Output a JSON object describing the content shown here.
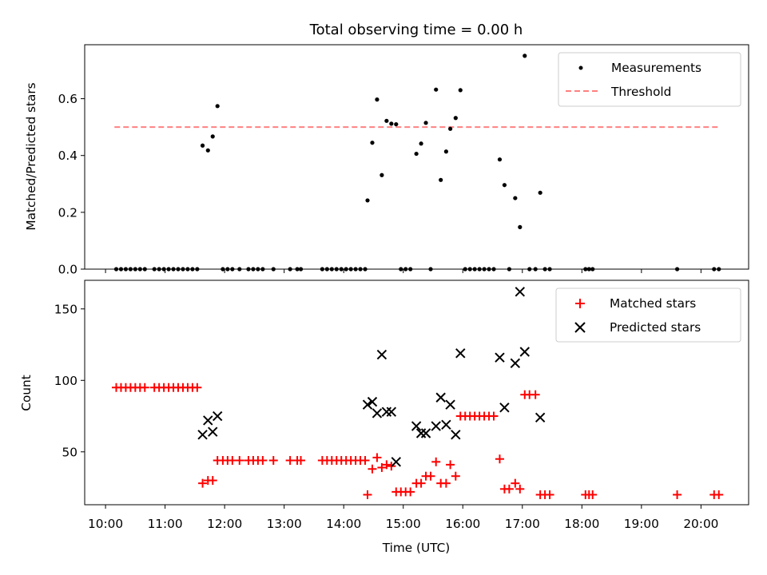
{
  "chart_data": [
    {
      "type": "scatter",
      "title": "Total observing time = 0.00 h",
      "xlabel": "",
      "ylabel": "Matched/Predicted stars",
      "xlim_hours": [
        9.65,
        20.8
      ],
      "ylim": [
        0,
        0.79
      ],
      "yticks": [
        "0.0",
        "0.2",
        "0.4",
        "0.6"
      ],
      "ytick_values": [
        0,
        0.2,
        0.4,
        0.6
      ],
      "grid": false,
      "legend_position": "top-right",
      "series": [
        {
          "name": "Measurements",
          "style": "dot",
          "color": "#000000",
          "points": [
            [
              10.18,
              0
            ],
            [
              10.26,
              0
            ],
            [
              10.34,
              0
            ],
            [
              10.42,
              0
            ],
            [
              10.5,
              0
            ],
            [
              10.58,
              0
            ],
            [
              10.66,
              0
            ],
            [
              10.82,
              0
            ],
            [
              10.9,
              0
            ],
            [
              10.98,
              0
            ],
            [
              11.06,
              0
            ],
            [
              11.14,
              0
            ],
            [
              11.22,
              0
            ],
            [
              11.3,
              0
            ],
            [
              11.38,
              0
            ],
            [
              11.46,
              0
            ],
            [
              11.54,
              0
            ],
            [
              11.63,
              0.435
            ],
            [
              11.72,
              0.418
            ],
            [
              11.8,
              0.467
            ],
            [
              11.88,
              0.574
            ],
            [
              11.97,
              0
            ],
            [
              12.05,
              0
            ],
            [
              12.13,
              0
            ],
            [
              12.25,
              0
            ],
            [
              12.4,
              0
            ],
            [
              12.48,
              0
            ],
            [
              12.56,
              0
            ],
            [
              12.64,
              0
            ],
            [
              12.82,
              0
            ],
            [
              13.1,
              0
            ],
            [
              13.22,
              0
            ],
            [
              13.28,
              0
            ],
            [
              13.64,
              0
            ],
            [
              13.72,
              0
            ],
            [
              13.8,
              0
            ],
            [
              13.88,
              0
            ],
            [
              13.96,
              0
            ],
            [
              14.04,
              0
            ],
            [
              14.12,
              0
            ],
            [
              14.2,
              0
            ],
            [
              14.28,
              0
            ],
            [
              14.36,
              0
            ],
            [
              14.4,
              0.242
            ],
            [
              14.48,
              0.445
            ],
            [
              14.56,
              0.597
            ],
            [
              14.64,
              0.331
            ],
            [
              14.72,
              0.522
            ],
            [
              14.8,
              0.512
            ],
            [
              14.88,
              0.51
            ],
            [
              14.96,
              0
            ],
            [
              15.04,
              0
            ],
            [
              15.12,
              0
            ],
            [
              15.22,
              0.406
            ],
            [
              15.3,
              0.442
            ],
            [
              15.38,
              0.515
            ],
            [
              15.46,
              0
            ],
            [
              15.55,
              0.632
            ],
            [
              15.63,
              0.314
            ],
            [
              15.72,
              0.414
            ],
            [
              15.79,
              0.494
            ],
            [
              15.88,
              0.532
            ],
            [
              15.96,
              0.63
            ],
            [
              16.04,
              0
            ],
            [
              16.12,
              0
            ],
            [
              16.2,
              0
            ],
            [
              16.28,
              0
            ],
            [
              16.36,
              0
            ],
            [
              16.44,
              0
            ],
            [
              16.52,
              0
            ],
            [
              16.62,
              0.386
            ],
            [
              16.7,
              0.296
            ],
            [
              16.78,
              0
            ],
            [
              16.88,
              0.25
            ],
            [
              16.96,
              0.148
            ],
            [
              17.04,
              0.751
            ],
            [
              17.12,
              0
            ],
            [
              17.22,
              0
            ],
            [
              17.3,
              0.269
            ],
            [
              17.38,
              0
            ],
            [
              17.46,
              0
            ],
            [
              18.06,
              0
            ],
            [
              18.12,
              0
            ],
            [
              18.18,
              0
            ],
            [
              19.6,
              0
            ],
            [
              20.22,
              0
            ],
            [
              20.3,
              0
            ]
          ]
        },
        {
          "name": "Threshold",
          "style": "dashed-line",
          "color": "#ff8080",
          "points": [
            [
              10.15,
              0.5
            ],
            [
              20.3,
              0.5
            ]
          ]
        }
      ]
    },
    {
      "type": "scatter",
      "title": "",
      "xlabel": "Time (UTC)",
      "ylabel": "Count",
      "xlim_hours": [
        9.65,
        20.8
      ],
      "ylim": [
        13,
        170
      ],
      "yticks": [
        "50",
        "100",
        "150"
      ],
      "ytick_values": [
        50,
        100,
        150
      ],
      "xticks": [
        "10:00",
        "11:00",
        "12:00",
        "13:00",
        "14:00",
        "15:00",
        "16:00",
        "17:00",
        "18:00",
        "19:00",
        "20:00"
      ],
      "xtick_values": [
        10,
        11,
        12,
        13,
        14,
        15,
        16,
        17,
        18,
        19,
        20
      ],
      "grid": false,
      "legend_position": "top-right",
      "series": [
        {
          "name": "Matched stars",
          "style": "plus",
          "color": "#ff0000",
          "points": [
            [
              10.18,
              95
            ],
            [
              10.26,
              95
            ],
            [
              10.34,
              95
            ],
            [
              10.42,
              95
            ],
            [
              10.5,
              95
            ],
            [
              10.58,
              95
            ],
            [
              10.66,
              95
            ],
            [
              10.82,
              95
            ],
            [
              10.9,
              95
            ],
            [
              10.98,
              95
            ],
            [
              11.06,
              95
            ],
            [
              11.14,
              95
            ],
            [
              11.22,
              95
            ],
            [
              11.3,
              95
            ],
            [
              11.38,
              95
            ],
            [
              11.46,
              95
            ],
            [
              11.54,
              95
            ],
            [
              11.63,
              28
            ],
            [
              11.72,
              30
            ],
            [
              11.8,
              30
            ],
            [
              11.88,
              44
            ],
            [
              11.97,
              44
            ],
            [
              12.05,
              44
            ],
            [
              12.13,
              44
            ],
            [
              12.25,
              44
            ],
            [
              12.4,
              44
            ],
            [
              12.48,
              44
            ],
            [
              12.56,
              44
            ],
            [
              12.64,
              44
            ],
            [
              12.82,
              44
            ],
            [
              13.1,
              44
            ],
            [
              13.22,
              44
            ],
            [
              13.28,
              44
            ],
            [
              13.64,
              44
            ],
            [
              13.72,
              44
            ],
            [
              13.8,
              44
            ],
            [
              13.88,
              44
            ],
            [
              13.96,
              44
            ],
            [
              14.04,
              44
            ],
            [
              14.12,
              44
            ],
            [
              14.2,
              44
            ],
            [
              14.28,
              44
            ],
            [
              14.36,
              44
            ],
            [
              14.4,
              20
            ],
            [
              14.48,
              38
            ],
            [
              14.56,
              46
            ],
            [
              14.64,
              39
            ],
            [
              14.72,
              41
            ],
            [
              14.8,
              40
            ],
            [
              14.88,
              22
            ],
            [
              14.96,
              22
            ],
            [
              15.04,
              22
            ],
            [
              15.12,
              22
            ],
            [
              15.22,
              28
            ],
            [
              15.3,
              28
            ],
            [
              15.38,
              33
            ],
            [
              15.46,
              33
            ],
            [
              15.55,
              43
            ],
            [
              15.63,
              28
            ],
            [
              15.72,
              28
            ],
            [
              15.79,
              41
            ],
            [
              15.88,
              33
            ],
            [
              15.96,
              75
            ],
            [
              16.04,
              75
            ],
            [
              16.12,
              75
            ],
            [
              16.2,
              75
            ],
            [
              16.28,
              75
            ],
            [
              16.36,
              75
            ],
            [
              16.44,
              75
            ],
            [
              16.52,
              75
            ],
            [
              16.62,
              45
            ],
            [
              16.7,
              24
            ],
            [
              16.78,
              24
            ],
            [
              16.88,
              28
            ],
            [
              16.96,
              24
            ],
            [
              17.04,
              90
            ],
            [
              17.12,
              90
            ],
            [
              17.22,
              90
            ],
            [
              17.3,
              20
            ],
            [
              17.38,
              20
            ],
            [
              17.46,
              20
            ],
            [
              18.06,
              20
            ],
            [
              18.12,
              20
            ],
            [
              18.18,
              20
            ],
            [
              19.6,
              20
            ],
            [
              20.22,
              20
            ],
            [
              20.3,
              20
            ]
          ]
        },
        {
          "name": "Predicted stars",
          "style": "cross",
          "color": "#000000",
          "points": [
            [
              11.63,
              62
            ],
            [
              11.72,
              72
            ],
            [
              11.8,
              64
            ],
            [
              11.88,
              75
            ],
            [
              14.4,
              83
            ],
            [
              14.48,
              85
            ],
            [
              14.56,
              77
            ],
            [
              14.64,
              118
            ],
            [
              14.72,
              78
            ],
            [
              14.8,
              78
            ],
            [
              14.88,
              43
            ],
            [
              15.22,
              68
            ],
            [
              15.3,
              63
            ],
            [
              15.38,
              63
            ],
            [
              15.55,
              68
            ],
            [
              15.63,
              88
            ],
            [
              15.72,
              69
            ],
            [
              15.79,
              83
            ],
            [
              15.88,
              62
            ],
            [
              15.96,
              119
            ],
            [
              16.62,
              116
            ],
            [
              16.7,
              81
            ],
            [
              16.88,
              112
            ],
            [
              16.96,
              162
            ],
            [
              17.04,
              120
            ],
            [
              17.3,
              74
            ]
          ]
        }
      ]
    }
  ]
}
